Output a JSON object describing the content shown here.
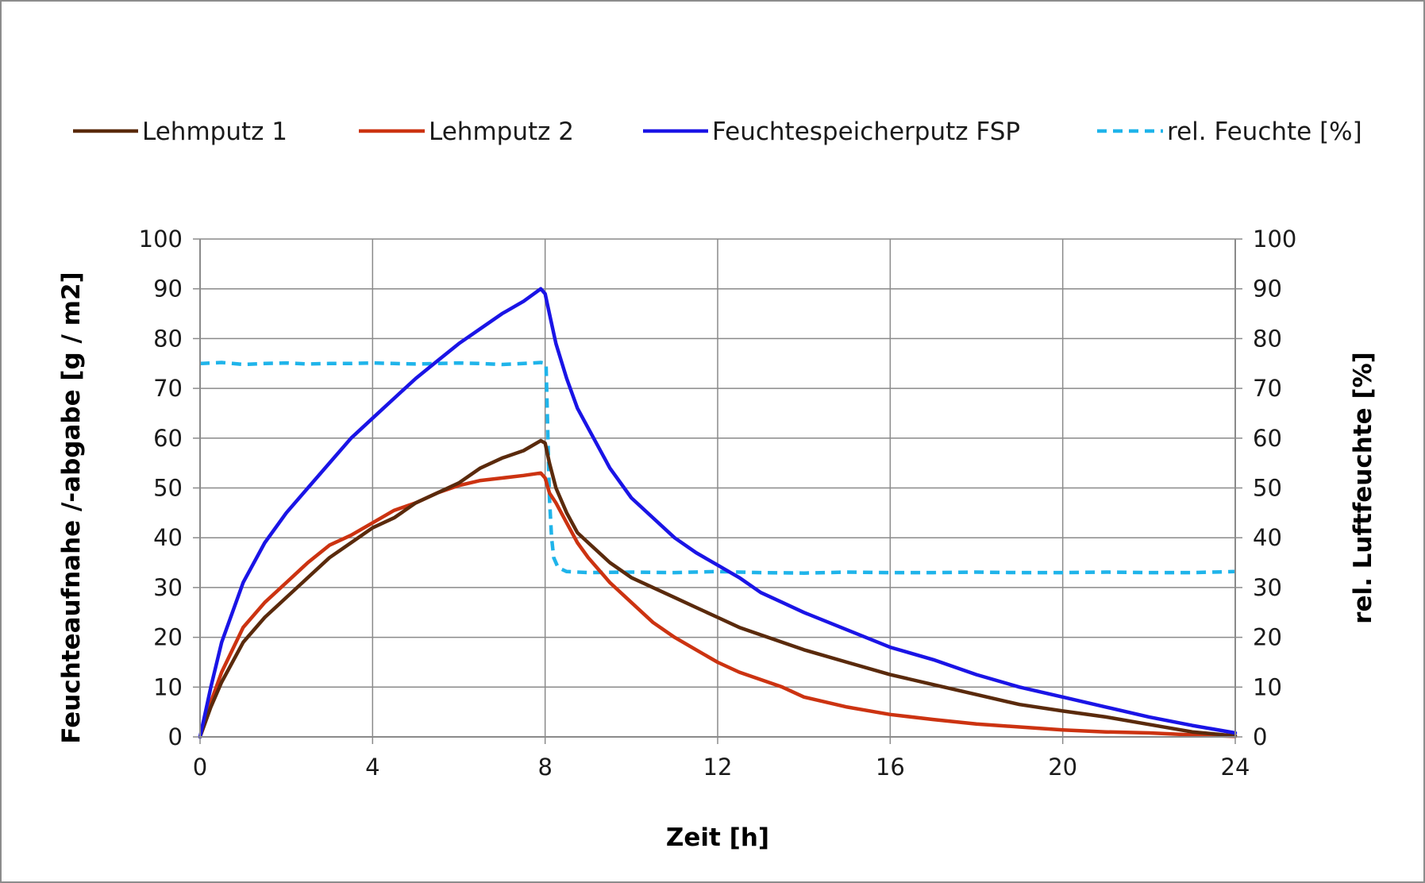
{
  "chart_data": {
    "type": "line",
    "title": "",
    "xlabel": "Zeit [h]",
    "ylabel": "Feuchteaufnahe /-abgabe [g / m2]",
    "y2label": "rel. Luftfeuchte [%]",
    "xlim": [
      0,
      24
    ],
    "ylim": [
      0,
      100
    ],
    "y2lim": [
      0,
      100
    ],
    "x_ticks": [
      "0",
      "4",
      "8",
      "12",
      "16",
      "20",
      "24"
    ],
    "y_ticks": [
      "0",
      "10",
      "20",
      "30",
      "40",
      "50",
      "60",
      "70",
      "80",
      "90",
      "100"
    ],
    "y2_ticks": [
      "0",
      "10",
      "20",
      "30",
      "40",
      "50",
      "60",
      "70",
      "80",
      "90",
      "100"
    ],
    "grid": true,
    "legend_position": "top",
    "series": [
      {
        "name": "Lehmputz 1",
        "color": "#5a2a0c",
        "style": "solid",
        "axis": "left",
        "x": [
          0,
          0.25,
          0.5,
          1,
          1.5,
          2,
          2.5,
          3,
          3.5,
          4,
          4.5,
          5,
          5.5,
          6,
          6.5,
          7,
          7.5,
          7.9,
          8,
          8.1,
          8.25,
          8.5,
          8.75,
          9,
          9.5,
          10,
          10.5,
          11,
          11.5,
          12,
          12.5,
          13,
          14,
          15,
          16,
          17,
          18,
          19,
          20,
          21,
          22,
          23,
          24
        ],
        "y": [
          0,
          6,
          11,
          19,
          24,
          28,
          32,
          36,
          39,
          42,
          44,
          47,
          49,
          51,
          54,
          56,
          57.5,
          59.5,
          59,
          55,
          50,
          45,
          41,
          39,
          35,
          32,
          30,
          28,
          26,
          24,
          22,
          20.5,
          17.5,
          15,
          12.5,
          10.5,
          8.5,
          6.5,
          5.2,
          4,
          2.5,
          1,
          0.2
        ]
      },
      {
        "name": "Lehmputz 2",
        "color": "#cc3311",
        "style": "solid",
        "axis": "left",
        "x": [
          0,
          0.25,
          0.5,
          1,
          1.5,
          2,
          2.5,
          3,
          3.5,
          4,
          4.5,
          5,
          5.5,
          6,
          6.5,
          7,
          7.5,
          7.9,
          8,
          8.1,
          8.25,
          8.5,
          8.75,
          9,
          9.5,
          10,
          10.5,
          11,
          11.5,
          12,
          12.5,
          13,
          13.5,
          14,
          15,
          16,
          17,
          18,
          19,
          20,
          21,
          22,
          23,
          24
        ],
        "y": [
          0,
          7,
          13,
          22,
          27,
          31,
          35,
          38.5,
          40.5,
          43,
          45.5,
          47,
          49,
          50.5,
          51.5,
          52,
          52.5,
          53,
          52,
          49,
          47,
          43,
          39,
          36,
          31,
          27,
          23,
          20,
          17.5,
          15,
          13,
          11.5,
          10,
          8,
          6,
          4.5,
          3.5,
          2.6,
          2,
          1.4,
          1,
          0.8,
          0.4,
          0.1
        ]
      },
      {
        "name": "Feuchtespeicherputz FSP",
        "color": "#1a14e6",
        "style": "solid",
        "axis": "left",
        "x": [
          0,
          0.25,
          0.5,
          1,
          1.5,
          2,
          2.5,
          3,
          3.5,
          4,
          4.5,
          5,
          5.5,
          6,
          6.5,
          7,
          7.5,
          7.9,
          8,
          8.1,
          8.25,
          8.5,
          8.75,
          9,
          9.5,
          10,
          10.5,
          11,
          11.5,
          12,
          12.5,
          13,
          13.5,
          14,
          15,
          16,
          17,
          18,
          19,
          20,
          21,
          22,
          23,
          24
        ],
        "y": [
          0,
          10,
          19,
          31,
          39,
          45,
          50,
          55,
          60,
          64,
          68,
          72,
          75.5,
          79,
          82,
          85,
          87.5,
          90,
          89,
          85,
          79,
          72,
          66,
          62,
          54,
          48,
          44,
          40,
          37,
          34.5,
          32,
          29,
          27,
          25,
          21.5,
          18,
          15.5,
          12.5,
          10,
          8,
          6,
          4,
          2.3,
          0.8
        ]
      },
      {
        "name": "rel. Feuchte [%]",
        "color": "#1fb4ea",
        "style": "dashed",
        "axis": "right",
        "x": [
          0,
          0.5,
          1,
          1.5,
          2,
          2.5,
          3,
          3.5,
          4,
          4.5,
          5,
          5.5,
          6,
          6.5,
          7,
          7.5,
          7.9,
          8.02,
          8.06,
          8.1,
          8.15,
          8.2,
          8.3,
          8.5,
          9,
          10,
          11,
          12,
          13,
          14,
          15,
          16,
          17,
          18,
          19,
          20,
          21,
          22,
          23,
          24
        ],
        "y": [
          75,
          75.2,
          74.8,
          75,
          75.1,
          74.9,
          75,
          75,
          75.1,
          75,
          74.9,
          75,
          75.1,
          75,
          74.8,
          75,
          75.2,
          75,
          62,
          48,
          40,
          36,
          34,
          33.2,
          33,
          33.1,
          33,
          33.2,
          33,
          32.9,
          33.1,
          33,
          33,
          33.1,
          33,
          33,
          33.1,
          33,
          33,
          33.2
        ]
      }
    ]
  }
}
